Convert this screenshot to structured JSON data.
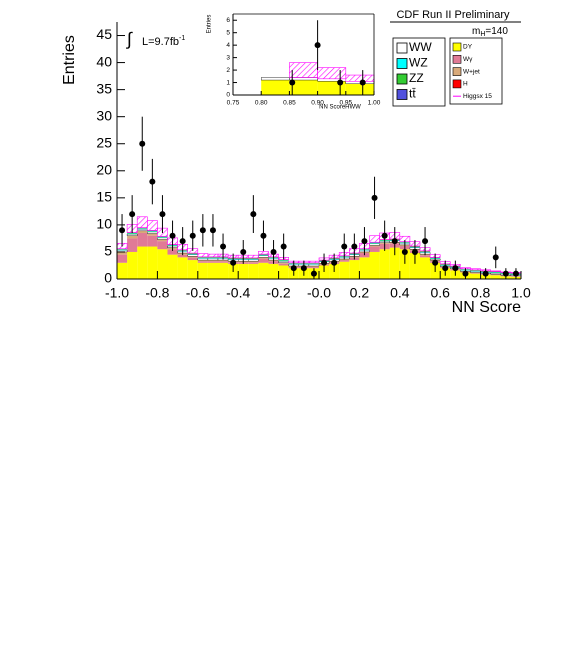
{
  "chart_data": [
    {
      "type": "histogram",
      "title": "CDF Run II Preliminary",
      "x_label": "NN Score",
      "y_label": "Entries",
      "lumi_integral": "∫",
      "lumi": "L=9.7fb",
      "lumi_exponent": "-1",
      "mass_label": "m",
      "mass_subscript": "H",
      "mass_value": "=140",
      "bins": [
        -1,
        -0.95,
        -0.9,
        -0.85,
        -0.8,
        -0.75,
        -0.7,
        -0.65,
        -0.6,
        -0.55,
        -0.5,
        -0.45,
        -0.4,
        -0.35,
        -0.3,
        -0.25,
        -0.2,
        -0.15,
        -0.1,
        -0.05,
        0,
        0.05,
        0.1,
        0.15,
        0.2,
        0.25,
        0.3,
        0.35,
        0.4,
        0.45,
        0.5,
        0.55,
        0.6,
        0.65,
        0.7,
        0.75,
        0.8,
        0.85,
        0.9,
        0.95,
        1
      ],
      "xlim": [
        -1,
        1
      ],
      "ylim": [
        0,
        47.5
      ],
      "xticks": [
        {
          "value": -1,
          "label": "-1.0"
        },
        -0.8,
        -0.6,
        -0.4,
        -0.2,
        {
          "value": 0,
          "label": "-0.0"
        },
        0.2,
        0.4,
        0.6,
        0.8,
        {
          "value": 1,
          "label": "1.0"
        }
      ],
      "yticks": [
        0,
        5,
        10,
        15,
        20,
        25,
        30,
        35,
        40,
        45
      ],
      "series": [
        {
          "name": "WW",
          "color": "#ffffff",
          "values": [
            0.3,
            0.3,
            0.3,
            0.3,
            0.3,
            0.3,
            0.3,
            0.3,
            0.3,
            0.3,
            0.3,
            0.3,
            0.3,
            0.3,
            0.3,
            0.3,
            0.3,
            0.3,
            0.3,
            0.3,
            0.3,
            0.3,
            0.3,
            0.3,
            0.3,
            0.3,
            0.3,
            0.3,
            0.3,
            0.3,
            0.3,
            0.2,
            0.2,
            0.2,
            0.2,
            0.2,
            0.2,
            0.2,
            0.2,
            0.2
          ]
        },
        {
          "name": "WZ",
          "color": "#00ffff",
          "values": [
            0.1,
            0.1,
            0.1,
            0.1,
            0.1,
            0.1,
            0.1,
            0.1,
            0.1,
            0.1,
            0.1,
            0.1,
            0.1,
            0.1,
            0.1,
            0.1,
            0.1,
            0.1,
            0.1,
            0.1,
            0.1,
            0.1,
            0.1,
            0.1,
            0.1,
            0.1,
            0.1,
            0.1,
            0.1,
            0.1,
            0.1,
            0.1,
            0.1,
            0.1,
            0.1,
            0.1,
            0.1,
            0.1,
            0.1,
            0.1
          ]
        },
        {
          "name": "ZZ",
          "color": "#33cc33",
          "values": [
            0.1,
            0.1,
            0.1,
            0.1,
            0.1,
            0.1,
            0.1,
            0.1,
            0.1,
            0.1,
            0.1,
            0.1,
            0.1,
            0.1,
            0.1,
            0.1,
            0.1,
            0.1,
            0.1,
            0.1,
            0.1,
            0.1,
            0.1,
            0.1,
            0.1,
            0.1,
            0.1,
            0.1,
            0.1,
            0.1,
            0.1,
            0.1,
            0.1,
            0.1,
            0.1,
            0.1,
            0.1,
            0.1,
            0.1,
            0.1
          ]
        },
        {
          "name": "tt̄",
          "color": "#5050dd",
          "values": [
            0.05,
            0.05,
            0.05,
            0.05,
            0.05,
            0.05,
            0.05,
            0.05,
            0.05,
            0.05,
            0.05,
            0.05,
            0.05,
            0.05,
            0.05,
            0.05,
            0.05,
            0.05,
            0.05,
            0.05,
            0.05,
            0.05,
            0.05,
            0.05,
            0.05,
            0.05,
            0.05,
            0.05,
            0.05,
            0.05,
            0.05,
            0.05,
            0.05,
            0.05,
            0.05,
            0.05,
            0.05,
            0.05,
            0.05,
            0.05
          ]
        },
        {
          "name": "DY",
          "color": "#ffff00",
          "values": [
            3,
            5,
            6,
            6,
            5.5,
            4.5,
            4,
            3.5,
            3,
            3,
            3,
            2.8,
            2.8,
            2.8,
            3,
            2.8,
            2.5,
            2,
            2,
            2,
            2.5,
            2.8,
            3.2,
            3.5,
            4,
            5,
            5.5,
            5.8,
            5.5,
            4.8,
            4,
            3,
            2,
            1.6,
            1.2,
            1,
            0.8,
            0.7,
            0.5,
            0.4
          ]
        },
        {
          "name": "Wγ",
          "color": "#e07a96",
          "values": [
            1.5,
            2.5,
            2.5,
            2,
            1.5,
            1,
            0.5,
            0.5,
            0.3,
            0.3,
            0.3,
            0.3,
            0.3,
            0.3,
            0.8,
            0.5,
            0.3,
            0.2,
            0.2,
            0.2,
            0.2,
            0.3,
            0.3,
            0.5,
            0.8,
            1,
            1,
            0.8,
            0.6,
            0.5,
            0.4,
            0.3,
            0.2,
            0.2,
            0.1,
            0.1,
            0.1,
            0.1,
            0.1,
            0.1
          ]
        },
        {
          "name": "W+jet",
          "color": "#d9aa7a",
          "values": [
            0.5,
            0.5,
            0.4,
            0.4,
            0.3,
            0.3,
            0.3,
            0.2,
            0.2,
            0.2,
            0.2,
            0.2,
            0.2,
            0.2,
            0.2,
            0.2,
            0.2,
            0.2,
            0.2,
            0.2,
            0.2,
            0.2,
            0.2,
            0.2,
            0.2,
            0.2,
            0.2,
            0.2,
            0.2,
            0.2,
            0.2,
            0.2,
            0.1,
            0.1,
            0.1,
            0.1,
            0.1,
            0.1,
            0.1,
            0.1
          ]
        },
        {
          "name": "H",
          "color": "#ff0000",
          "values": [
            0.05,
            0.05,
            0.05,
            0.05,
            0.05,
            0.05,
            0.05,
            0.05,
            0.05,
            0.05,
            0.05,
            0.05,
            0.05,
            0.05,
            0.05,
            0.05,
            0.05,
            0.05,
            0.05,
            0.05,
            0.05,
            0.05,
            0.05,
            0.05,
            0.05,
            0.05,
            0.05,
            0.05,
            0.05,
            0.05,
            0.05,
            0.05,
            0.05,
            0.05,
            0.05,
            0.05,
            0.05,
            0.05,
            0.05,
            0.05
          ]
        },
        {
          "name": "Higgsx 15",
          "color": "#ff00ff",
          "style": "line",
          "values": [
            1,
            1.5,
            2,
            1.8,
            1.5,
            1.2,
            1,
            0.8,
            0.6,
            0.5,
            0.5,
            0.5,
            0.5,
            0.5,
            0.5,
            0.5,
            0.4,
            0.3,
            0.3,
            0.3,
            0.4,
            0.5,
            0.6,
            0.8,
            1,
            1.2,
            1.2,
            1.2,
            1,
            0.8,
            0.6,
            0.5,
            0.4,
            0.3,
            0.2,
            0.2,
            0.2,
            0.1,
            0.1,
            0.1
          ]
        }
      ],
      "data": {
        "color": "#000000",
        "values": [
          9,
          12,
          25,
          18,
          12,
          8,
          7,
          8,
          9,
          9,
          6,
          3,
          5,
          12,
          8,
          5,
          6,
          2,
          2,
          1,
          3,
          3,
          6,
          6,
          7,
          15,
          8,
          7,
          5,
          5,
          7,
          3,
          2,
          2,
          1,
          null,
          1,
          4,
          1,
          1
        ],
        "errors": [
          3,
          3.5,
          5,
          4.2,
          3.5,
          2.8,
          2.6,
          2.8,
          3,
          3,
          2.4,
          1.7,
          2.2,
          3.5,
          2.8,
          2.2,
          2.4,
          1.4,
          1.4,
          1,
          1.7,
          1.7,
          2.4,
          2.4,
          2.6,
          3.9,
          2.8,
          2.6,
          2.2,
          2.2,
          2.6,
          1.7,
          1.4,
          1.4,
          1,
          null,
          1,
          2,
          1,
          1
        ]
      }
    },
    {
      "type": "histogram",
      "x_label": "NN ScoreHWW",
      "y_label": "Entries",
      "bins": [
        0.75,
        0.8,
        0.85,
        0.9,
        0.95,
        1.0
      ],
      "xlim": [
        0.75,
        1.0
      ],
      "ylim": [
        0,
        6.5
      ],
      "xticks": [
        0.75,
        {
          "value": 0.8,
          "label": "0.80"
        },
        0.85,
        {
          "value": 0.9,
          "label": "0.90"
        },
        0.95,
        {
          "value": 1,
          "label": "1.00"
        }
      ],
      "yticks": [
        0,
        1,
        2,
        3,
        4,
        5,
        6
      ],
      "series": [
        {
          "color": "#ffff00",
          "values": [
            0,
            1.2,
            1.2,
            1.1,
            0.9
          ]
        },
        {
          "color": "#ffffff",
          "values": [
            0,
            0.2,
            0.2,
            0.2,
            0.2
          ]
        },
        {
          "color": "#ff00ff",
          "style": "line",
          "values": [
            0,
            0,
            1.2,
            0.9,
            0.5
          ]
        }
      ],
      "data": {
        "color": "#000000",
        "x": [
          0.855,
          0.9,
          0.94,
          0.98
        ],
        "values": [
          1,
          4,
          1,
          1
        ],
        "errors": [
          1,
          2,
          1,
          1
        ]
      }
    }
  ]
}
